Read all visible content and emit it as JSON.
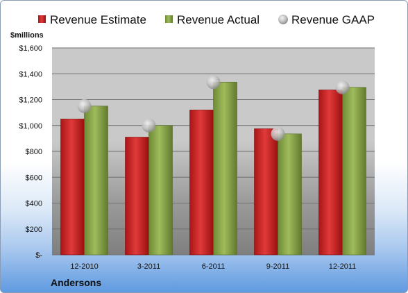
{
  "chart_data": {
    "type": "bar",
    "ylabel": "$millions",
    "xlabel": "Andersons",
    "categories": [
      "12-2010",
      "3-2011",
      "6-2011",
      "9-2011",
      "12-2011"
    ],
    "series": [
      {
        "name": "Revenue Estimate",
        "type": "bar",
        "color": "#d42a2a",
        "values": [
          1050,
          910,
          1120,
          975,
          1275
        ]
      },
      {
        "name": "Revenue Actual",
        "type": "bar",
        "color": "#8aa84a",
        "values": [
          1150,
          1000,
          1335,
          935,
          1295
        ]
      },
      {
        "name": "Revenue GAAP",
        "type": "marker",
        "color": "#b8b8b8",
        "values": [
          1150,
          1000,
          1335,
          935,
          1295
        ]
      }
    ],
    "ylim": [
      0,
      1600
    ],
    "y_ticks": [
      0,
      200,
      400,
      600,
      800,
      1000,
      1200,
      1400,
      1600
    ],
    "y_tick_labels": [
      "$-",
      "$200",
      "$400",
      "$600",
      "$800",
      "$1,000",
      "$1,200",
      "$1,400",
      "$1,600"
    ],
    "grid": true,
    "legend": "top"
  }
}
